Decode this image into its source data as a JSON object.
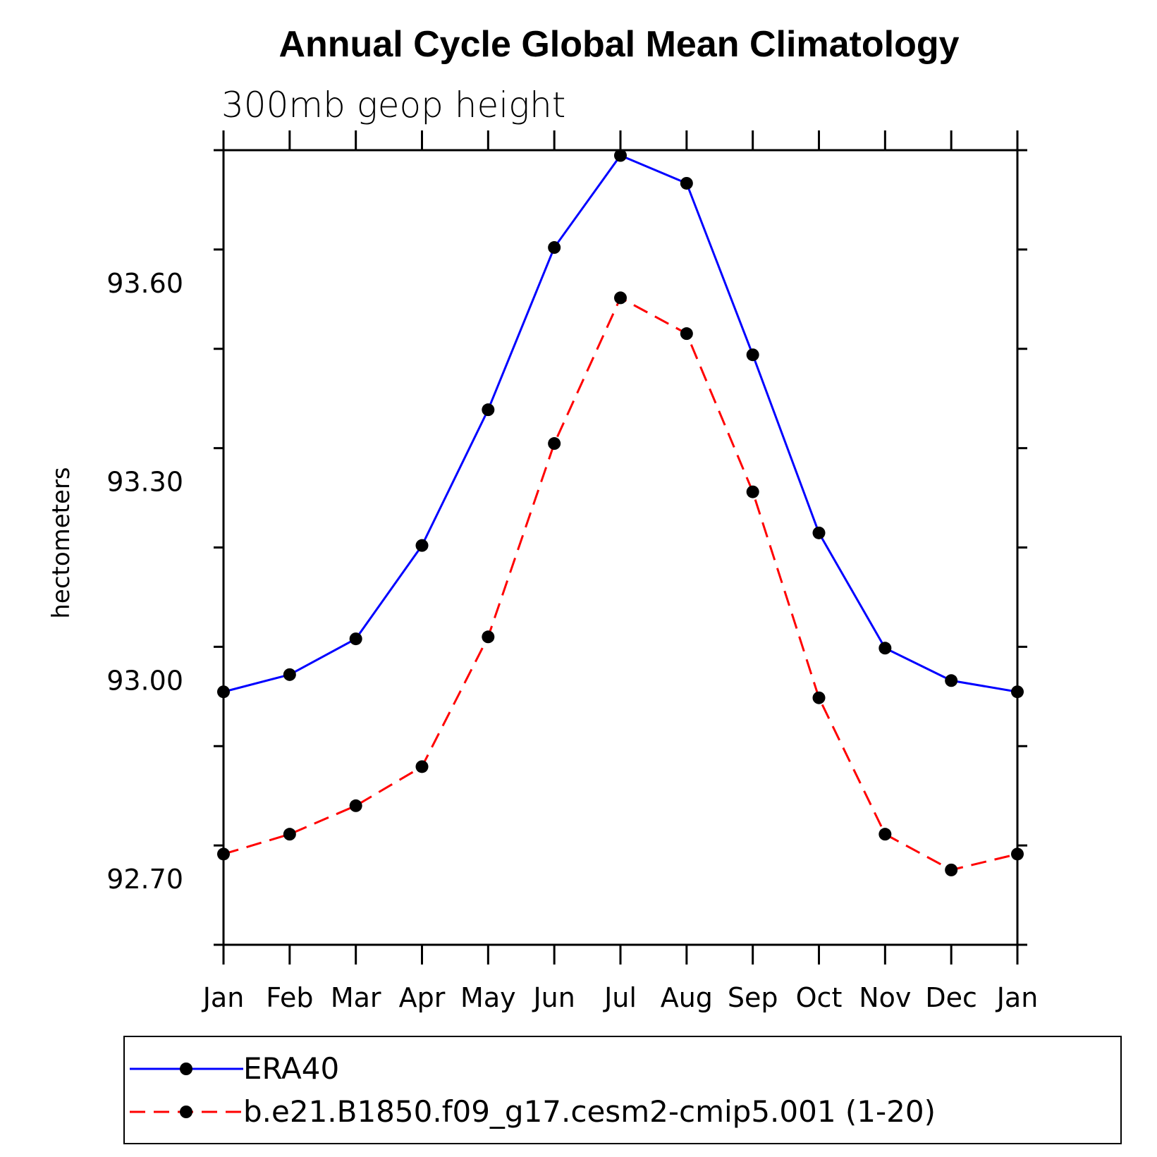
{
  "chart_data": {
    "type": "line",
    "title": "Annual Cycle Global Mean Climatology",
    "subtitle": "300mb geop height",
    "xlabel": "",
    "ylabel": "hectometers",
    "categories": [
      "Jan",
      "Feb",
      "Mar",
      "Apr",
      "May",
      "Jun",
      "Jul",
      "Aug",
      "Sep",
      "Oct",
      "Nov",
      "Dec",
      "Jan"
    ],
    "y_ticks": [
      92.7,
      93.0,
      93.3,
      93.6
    ],
    "y_tick_labels": [
      "92.70",
      "93.00",
      "93.30",
      "93.60"
    ],
    "ylim": [
      92.6,
      93.8
    ],
    "grid": false,
    "legend_position": "bottom",
    "series": [
      {
        "name": "ERA40",
        "color": "#0000ff",
        "dash": "solid",
        "values": [
          92.982,
          93.008,
          93.062,
          93.203,
          93.408,
          93.653,
          93.792,
          93.75,
          93.491,
          93.222,
          93.048,
          92.999,
          92.982
        ]
      },
      {
        "name": "b.e21.B1850.f09_g17.cesm2-cmip5.001 (1-20)",
        "color": "#ff0000",
        "dash": "dashed",
        "values": [
          92.737,
          92.767,
          92.81,
          92.869,
          93.065,
          93.357,
          93.577,
          93.523,
          93.284,
          92.973,
          92.767,
          92.713,
          92.737
        ]
      }
    ]
  }
}
